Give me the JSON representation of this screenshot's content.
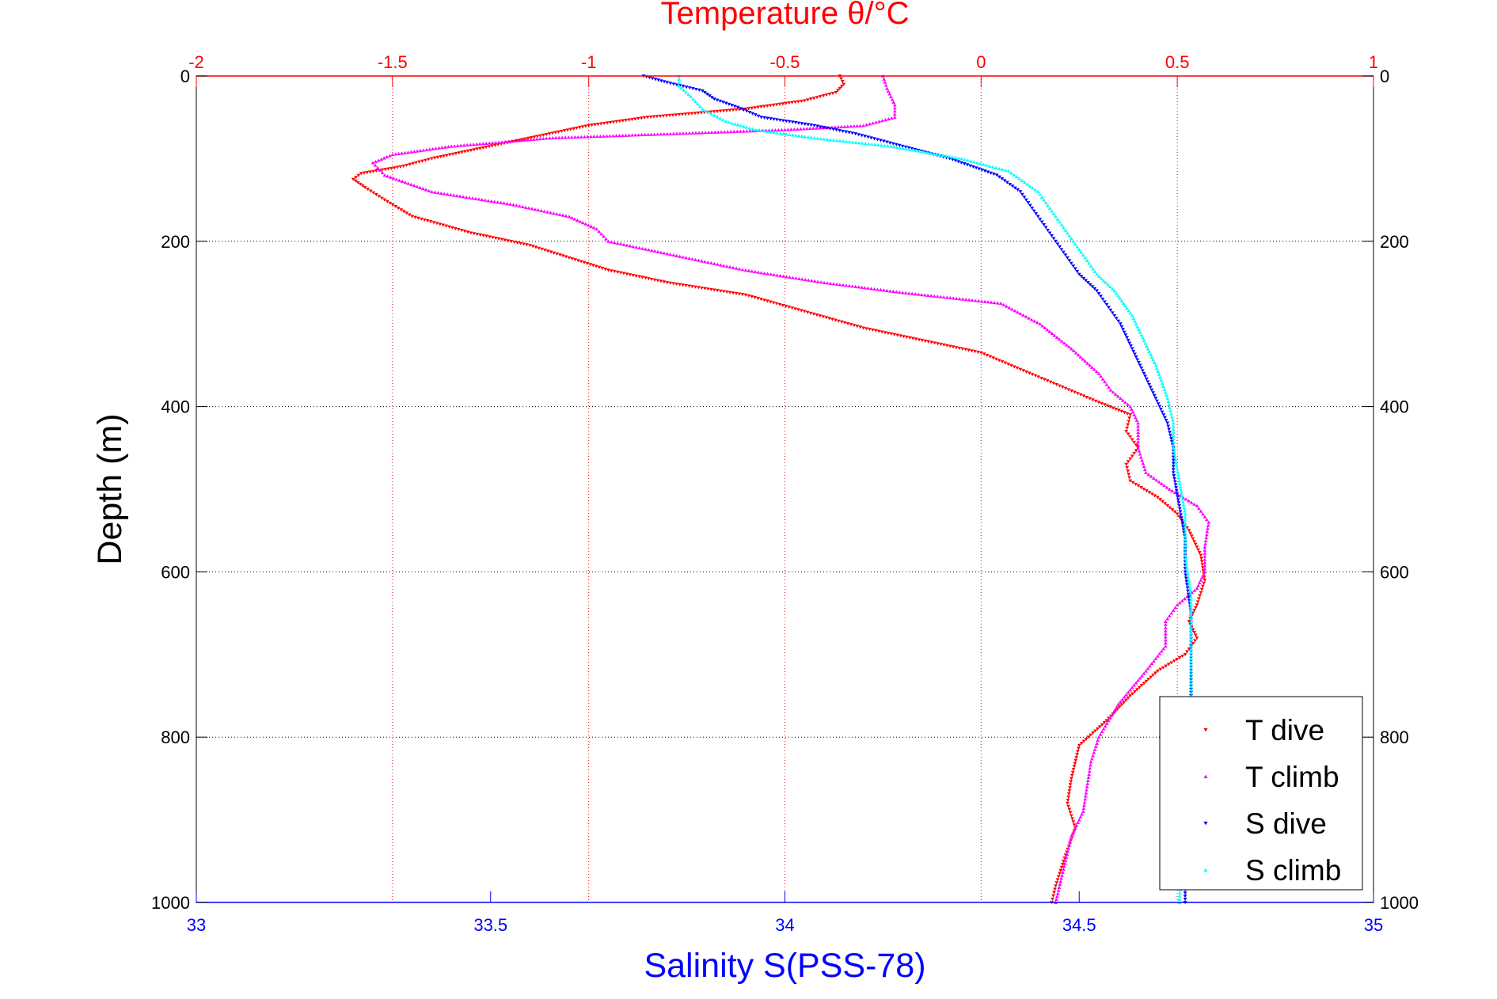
{
  "chart_data": {
    "type": "scatter",
    "title": "Temperature θ/°C",
    "xlabel": "Salinity S(PSS-78)",
    "ylabel": "Depth (m)",
    "ylim": [
      1000,
      0
    ],
    "y_ticks": [
      0,
      200,
      400,
      600,
      800,
      1000
    ],
    "y_tick_labels": [
      "0",
      "200",
      "400",
      "600",
      "800",
      "1000"
    ],
    "grid": true,
    "legend_position": "bottom-right",
    "temperature_axis": {
      "position": "top",
      "label": "Temperature θ/°C",
      "range": [
        -2,
        1
      ],
      "ticks": [
        -2,
        -1.5,
        -1,
        -0.5,
        0,
        0.5,
        1
      ],
      "tick_labels": [
        "-2",
        "-1.5",
        "-1",
        "-0.5",
        "0",
        "0.5",
        "1"
      ],
      "color": "#ff0000"
    },
    "salinity_axis": {
      "position": "bottom",
      "label": "Salinity S(PSS-78)",
      "range": [
        33,
        35
      ],
      "ticks": [
        33,
        33.5,
        34,
        34.5,
        35
      ],
      "tick_labels": [
        "33",
        "33.5",
        "34",
        "34.5",
        "35"
      ],
      "color": "#0000ff"
    },
    "series": [
      {
        "name": "T dive",
        "axis": "temperature",
        "color": "#ff0000",
        "marker": "triangle-down",
        "points": [
          [
            -0.36,
            0
          ],
          [
            -0.35,
            10
          ],
          [
            -0.37,
            20
          ],
          [
            -0.45,
            30
          ],
          [
            -0.6,
            40
          ],
          [
            -0.85,
            50
          ],
          [
            -1.0,
            60
          ],
          [
            -1.1,
            70
          ],
          [
            -1.2,
            80
          ],
          [
            -1.3,
            90
          ],
          [
            -1.4,
            100
          ],
          [
            -1.48,
            110
          ],
          [
            -1.58,
            118
          ],
          [
            -1.6,
            125
          ],
          [
            -1.57,
            135
          ],
          [
            -1.52,
            150
          ],
          [
            -1.45,
            170
          ],
          [
            -1.3,
            190
          ],
          [
            -1.15,
            205
          ],
          [
            -1.05,
            220
          ],
          [
            -0.95,
            235
          ],
          [
            -0.8,
            250
          ],
          [
            -0.6,
            265
          ],
          [
            -0.45,
            285
          ],
          [
            -0.3,
            305
          ],
          [
            -0.15,
            320
          ],
          [
            0.0,
            335
          ],
          [
            0.1,
            355
          ],
          [
            0.2,
            375
          ],
          [
            0.3,
            395
          ],
          [
            0.38,
            410
          ],
          [
            0.37,
            430
          ],
          [
            0.4,
            450
          ],
          [
            0.37,
            470
          ],
          [
            0.38,
            490
          ],
          [
            0.45,
            510
          ],
          [
            0.5,
            530
          ],
          [
            0.53,
            550
          ],
          [
            0.56,
            580
          ],
          [
            0.57,
            610
          ],
          [
            0.55,
            640
          ],
          [
            0.53,
            660
          ],
          [
            0.55,
            680
          ],
          [
            0.52,
            700
          ],
          [
            0.45,
            720
          ],
          [
            0.38,
            750
          ],
          [
            0.32,
            780
          ],
          [
            0.25,
            810
          ],
          [
            0.23,
            850
          ],
          [
            0.22,
            880
          ],
          [
            0.24,
            910
          ],
          [
            0.21,
            950
          ],
          [
            0.19,
            980
          ],
          [
            0.18,
            1000
          ]
        ]
      },
      {
        "name": "T climb",
        "axis": "temperature",
        "color": "#ff00ff",
        "marker": "triangle-up",
        "points": [
          [
            -0.25,
            0
          ],
          [
            -0.24,
            15
          ],
          [
            -0.22,
            35
          ],
          [
            -0.22,
            50
          ],
          [
            -0.3,
            60
          ],
          [
            -0.5,
            65
          ],
          [
            -0.8,
            70
          ],
          [
            -1.1,
            75
          ],
          [
            -1.35,
            85
          ],
          [
            -1.5,
            95
          ],
          [
            -1.55,
            105
          ],
          [
            -1.52,
            120
          ],
          [
            -1.4,
            140
          ],
          [
            -1.2,
            155
          ],
          [
            -1.05,
            170
          ],
          [
            -0.98,
            185
          ],
          [
            -0.95,
            200
          ],
          [
            -0.8,
            215
          ],
          [
            -0.6,
            235
          ],
          [
            -0.4,
            250
          ],
          [
            -0.2,
            262
          ],
          [
            0.05,
            275
          ],
          [
            0.15,
            300
          ],
          [
            0.23,
            330
          ],
          [
            0.3,
            360
          ],
          [
            0.33,
            380
          ],
          [
            0.38,
            400
          ],
          [
            0.4,
            420
          ],
          [
            0.4,
            450
          ],
          [
            0.42,
            480
          ],
          [
            0.48,
            500
          ],
          [
            0.55,
            520
          ],
          [
            0.58,
            540
          ],
          [
            0.57,
            570
          ],
          [
            0.57,
            600
          ],
          [
            0.55,
            620
          ],
          [
            0.5,
            640
          ],
          [
            0.47,
            660
          ],
          [
            0.47,
            690
          ],
          [
            0.42,
            720
          ],
          [
            0.35,
            760
          ],
          [
            0.3,
            800
          ],
          [
            0.28,
            830
          ],
          [
            0.27,
            860
          ],
          [
            0.26,
            890
          ],
          [
            0.23,
            920
          ],
          [
            0.21,
            960
          ],
          [
            0.19,
            1000
          ]
        ]
      },
      {
        "name": "S dive",
        "axis": "salinity",
        "color": "#0000ff",
        "marker": "triangle-down",
        "points": [
          [
            33.76,
            0
          ],
          [
            33.8,
            8
          ],
          [
            33.86,
            18
          ],
          [
            33.88,
            28
          ],
          [
            33.92,
            38
          ],
          [
            33.96,
            50
          ],
          [
            34.05,
            60
          ],
          [
            34.12,
            70
          ],
          [
            34.2,
            85
          ],
          [
            34.28,
            100
          ],
          [
            34.36,
            120
          ],
          [
            34.4,
            140
          ],
          [
            34.42,
            160
          ],
          [
            34.44,
            180
          ],
          [
            34.46,
            200
          ],
          [
            34.48,
            220
          ],
          [
            34.5,
            240
          ],
          [
            34.53,
            260
          ],
          [
            34.55,
            280
          ],
          [
            34.57,
            300
          ],
          [
            34.59,
            330
          ],
          [
            34.61,
            360
          ],
          [
            34.63,
            390
          ],
          [
            34.65,
            420
          ],
          [
            34.66,
            450
          ],
          [
            34.66,
            480
          ],
          [
            34.67,
            520
          ],
          [
            34.68,
            560
          ],
          [
            34.68,
            600
          ],
          [
            34.69,
            650
          ],
          [
            34.69,
            700
          ],
          [
            34.69,
            750
          ],
          [
            34.69,
            800
          ],
          [
            34.68,
            860
          ],
          [
            34.68,
            920
          ],
          [
            34.68,
            1000
          ]
        ]
      },
      {
        "name": "S climb",
        "axis": "salinity",
        "color": "#00ffff",
        "marker": "triangle-up",
        "points": [
          [
            33.82,
            0
          ],
          [
            33.82,
            12
          ],
          [
            33.84,
            25
          ],
          [
            33.86,
            40
          ],
          [
            33.9,
            55
          ],
          [
            33.95,
            65
          ],
          [
            34.05,
            75
          ],
          [
            34.18,
            85
          ],
          [
            34.3,
            100
          ],
          [
            34.38,
            115
          ],
          [
            34.43,
            140
          ],
          [
            34.45,
            160
          ],
          [
            34.47,
            180
          ],
          [
            34.49,
            200
          ],
          [
            34.51,
            220
          ],
          [
            34.53,
            240
          ],
          [
            34.56,
            260
          ],
          [
            34.59,
            290
          ],
          [
            34.61,
            320
          ],
          [
            34.63,
            350
          ],
          [
            34.65,
            390
          ],
          [
            34.66,
            420
          ],
          [
            34.66,
            450
          ],
          [
            34.67,
            490
          ],
          [
            34.68,
            530
          ],
          [
            34.68,
            580
          ],
          [
            34.69,
            630
          ],
          [
            34.69,
            690
          ],
          [
            34.69,
            750
          ],
          [
            34.68,
            820
          ],
          [
            34.68,
            900
          ],
          [
            34.67,
            1000
          ]
        ]
      }
    ]
  }
}
